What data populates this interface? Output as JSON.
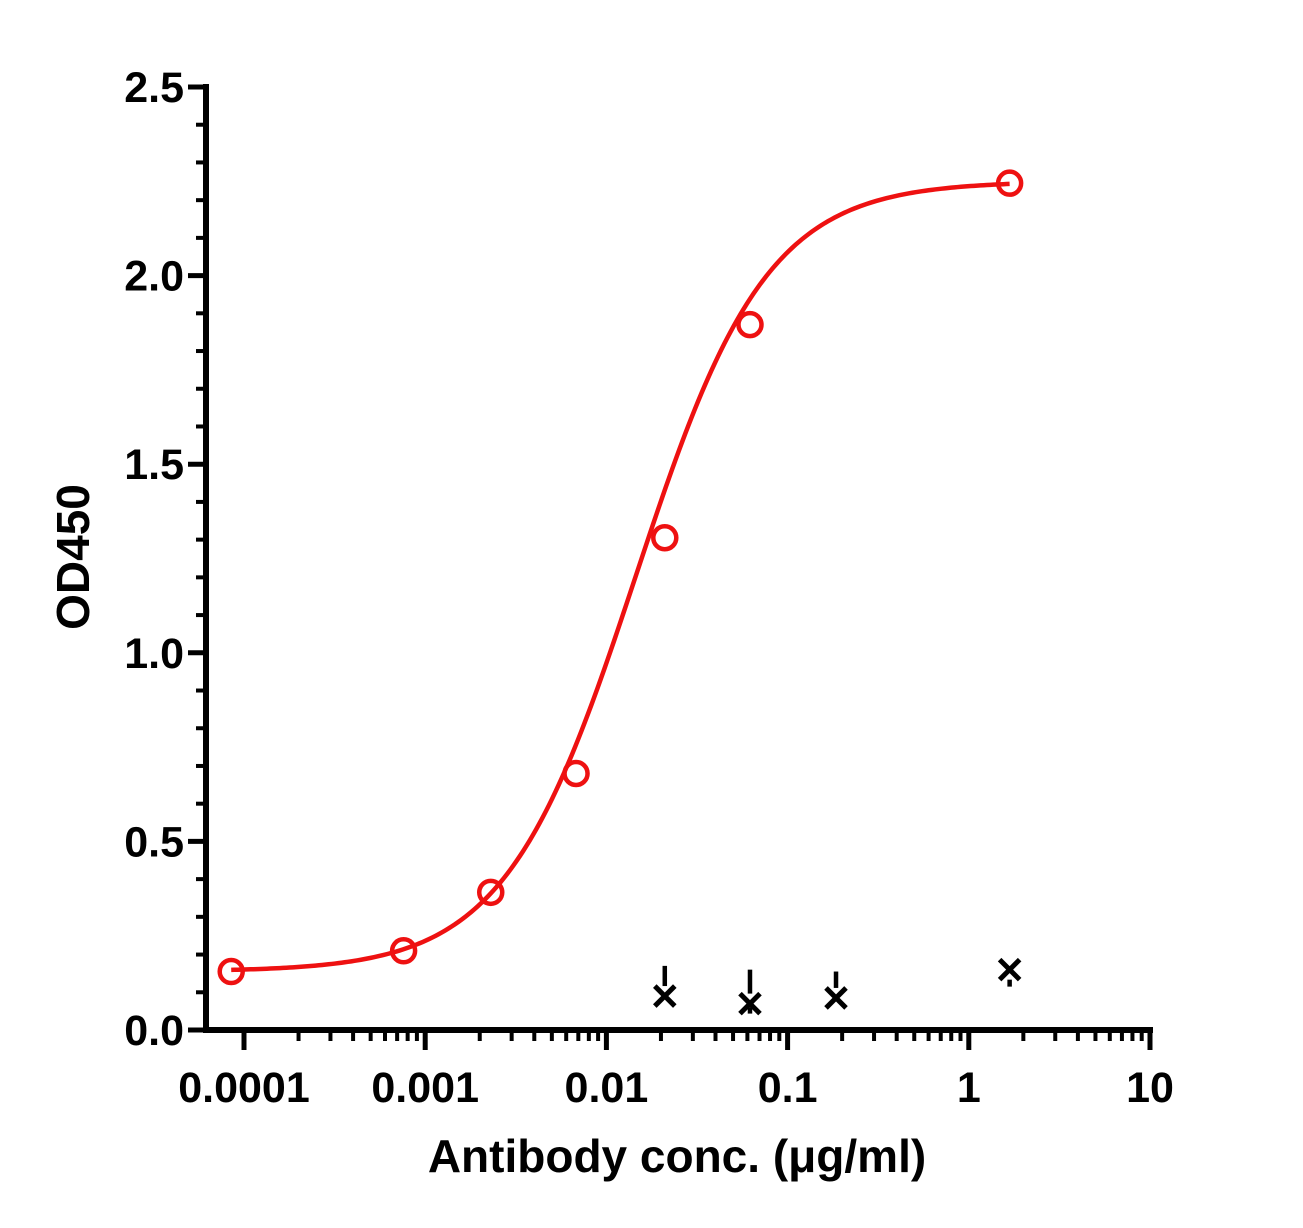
{
  "chart_data": {
    "type": "scatter",
    "title": "",
    "xlabel": "Antibody conc. (μg/ml)",
    "ylabel": "OD450",
    "xscale": "log",
    "xlim": [
      0.0001,
      10
    ],
    "ylim": [
      0,
      2.5
    ],
    "x_ticks": [
      "0.0001",
      "0.001",
      "0.01",
      "0.1",
      "1",
      "10"
    ],
    "y_ticks": [
      "0.0",
      "0.5",
      "1.0",
      "1.5",
      "2.0",
      "2.5"
    ],
    "grid": false,
    "legend": "none",
    "series": [
      {
        "marker": "circle-open",
        "color": "#ee1111",
        "fit": "4PL",
        "x": [
          8.5e-05,
          0.00076,
          0.0023,
          0.0068,
          0.021,
          0.062,
          1.68
        ],
        "y": [
          0.155,
          0.21,
          0.365,
          0.68,
          1.305,
          1.87,
          2.245
        ],
        "error": [
          0.01,
          0.01,
          0.01,
          0.01,
          0.01,
          0.01,
          0.01
        ]
      },
      {
        "marker": "x",
        "color": "#000000",
        "x": [
          0.021,
          0.062,
          0.185,
          1.68
        ],
        "y": [
          0.09,
          0.07,
          0.085,
          0.16
        ],
        "error_low": [
          0.09,
          0.06,
          0.085,
          0.115
        ],
        "error_high": [
          0.17,
          0.16,
          0.155,
          0.16
        ]
      }
    ]
  }
}
